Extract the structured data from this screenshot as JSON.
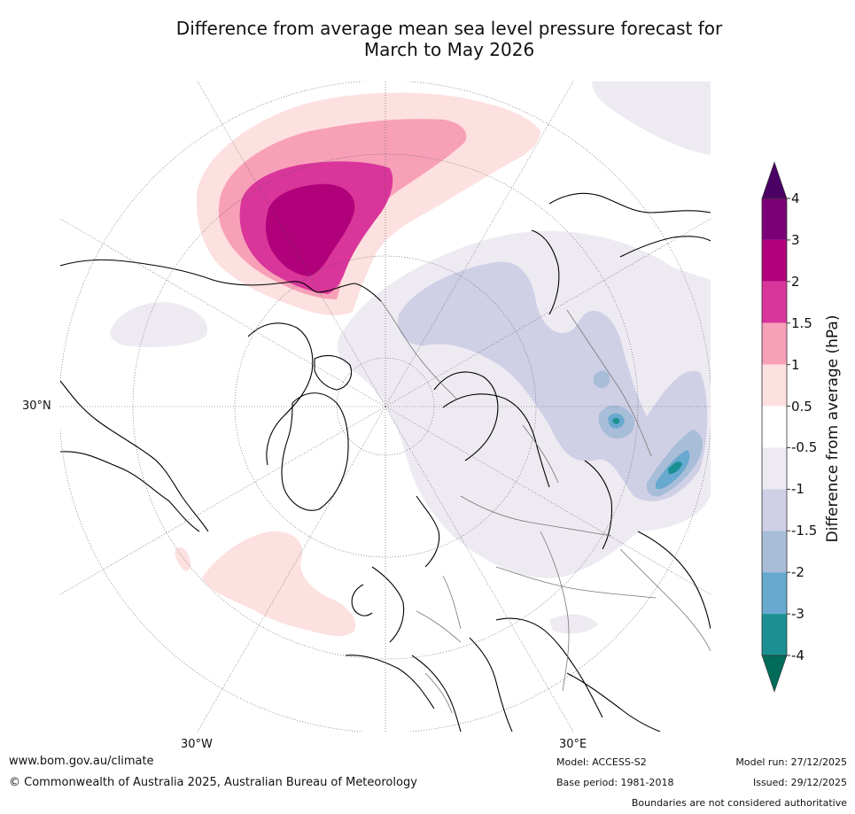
{
  "title": {
    "line1": "Difference from average mean sea level pressure forecast for",
    "line2": "March to May 2026"
  },
  "graticule_labels": {
    "lat_30n": "30°N",
    "lon_30w": "30°W",
    "lon_30e": "30°E"
  },
  "legend": {
    "title": "Difference from average (hPa)",
    "ticks": [
      "4",
      "3",
      "2",
      "1.5",
      "1",
      "0.5",
      "-0.5",
      "-1",
      "-1.5",
      "-2",
      "-3",
      "-4"
    ],
    "bin_colors": [
      "#7b0078",
      "#b0007a",
      "#d9359a",
      "#f7a0b8",
      "#fde0e0",
      "#ffffff",
      "#eeeaf2",
      "#cfd0e6",
      "#a8bdd8",
      "#67a9cf",
      "#1a9092"
    ],
    "over_color": "#4a0064",
    "under_color": "#016c59"
  },
  "footer": {
    "url": "www.bom.gov.au/climate",
    "copyright": "© Commonwealth of Australia 2025, Australian Bureau of Meteorology",
    "model": "Model: ACCESS-S2",
    "base_period": "Base period: 1981-2018",
    "model_run": "Model run: 27/12/2025",
    "issued": "Issued: 29/12/2025",
    "disclaimer": "Boundaries are not considered authoritative"
  }
}
